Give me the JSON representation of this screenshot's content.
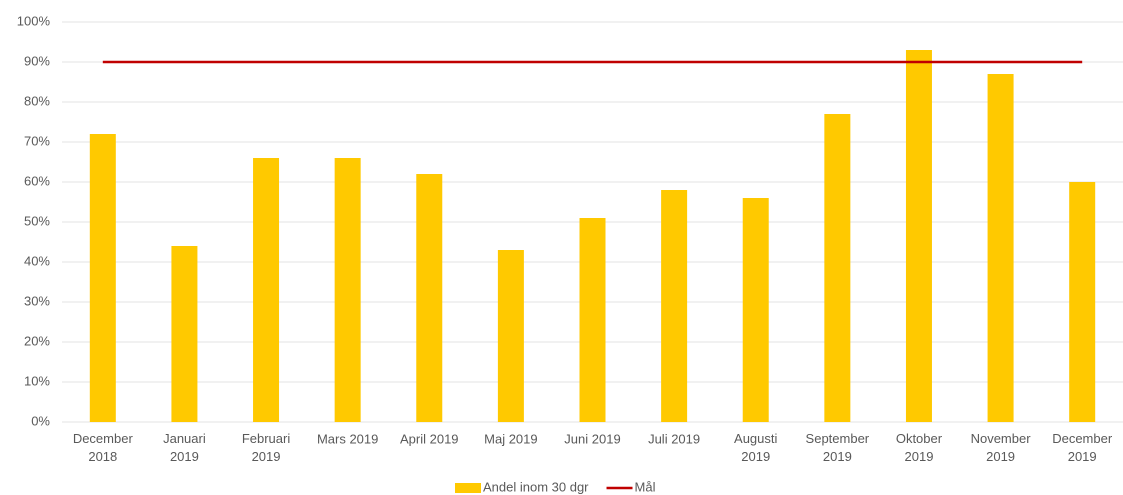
{
  "chart_data": {
    "type": "bar",
    "categories": [
      "December 2018",
      "Januari 2019",
      "Februari 2019",
      "Mars 2019",
      "April 2019",
      "Maj 2019",
      "Juni 2019",
      "Juli 2019",
      "Augusti 2019",
      "September 2019",
      "Oktober 2019",
      "November 2019",
      "December 2019"
    ],
    "series": [
      {
        "name": "Andel inom 30 dgr",
        "type": "bar",
        "color": "#ffc900",
        "values": [
          72,
          44,
          66,
          66,
          62,
          43,
          51,
          58,
          56,
          77,
          93,
          87,
          60
        ]
      },
      {
        "name": "Mål",
        "type": "line",
        "color": "#c00000",
        "values": [
          90,
          90,
          90,
          90,
          90,
          90,
          90,
          90,
          90,
          90,
          90,
          90,
          90
        ]
      }
    ],
    "ylim": [
      0,
      100
    ],
    "yticks": [
      {
        "value": 0,
        "label": "0%"
      },
      {
        "value": 10,
        "label": "10%"
      },
      {
        "value": 20,
        "label": "20%"
      },
      {
        "value": 30,
        "label": "30%"
      },
      {
        "value": 40,
        "label": "40%"
      },
      {
        "value": 50,
        "label": "50%"
      },
      {
        "value": 60,
        "label": "60%"
      },
      {
        "value": 70,
        "label": "70%"
      },
      {
        "value": 80,
        "label": "80%"
      },
      {
        "value": 90,
        "label": "90%"
      },
      {
        "value": 100,
        "label": "100%"
      }
    ],
    "grid": true,
    "legend": "bottom"
  }
}
